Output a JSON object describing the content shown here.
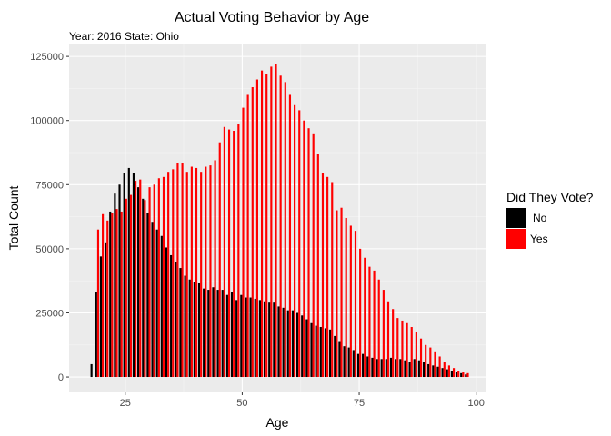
{
  "chart_data": {
    "type": "bar",
    "title": "Actual Voting Behavior by Age",
    "subtitle": "Year: 2016 State: Ohio",
    "xlabel": "Age",
    "ylabel": "Total Count",
    "xlim": [
      13,
      102
    ],
    "ylim": [
      -6000,
      130000
    ],
    "xticks": [
      25,
      50,
      75,
      100
    ],
    "yticks": [
      0,
      25000,
      50000,
      75000,
      100000,
      125000
    ],
    "xtick_labels": [
      "25",
      "50",
      "75",
      "100"
    ],
    "ytick_labels": [
      "0",
      "25000",
      "50000",
      "75000",
      "100000",
      "125000"
    ],
    "grid": true,
    "legend": {
      "title": "Did They Vote?",
      "position": "right",
      "entries": [
        {
          "label": "No",
          "color": "#000000"
        },
        {
          "label": "Yes",
          "color": "#ff0000"
        }
      ]
    },
    "ages": [
      18,
      19,
      20,
      21,
      22,
      23,
      24,
      25,
      26,
      27,
      28,
      29,
      30,
      31,
      32,
      33,
      34,
      35,
      36,
      37,
      38,
      39,
      40,
      41,
      42,
      43,
      44,
      45,
      46,
      47,
      48,
      49,
      50,
      51,
      52,
      53,
      54,
      55,
      56,
      57,
      58,
      59,
      60,
      61,
      62,
      63,
      64,
      65,
      66,
      67,
      68,
      69,
      70,
      71,
      72,
      73,
      74,
      75,
      76,
      77,
      78,
      79,
      80,
      81,
      82,
      83,
      84,
      85,
      86,
      87,
      88,
      89,
      90,
      91,
      92,
      93,
      94,
      95,
      96,
      97,
      98
    ],
    "series": [
      {
        "name": "No",
        "color": "#000000",
        "values": [
          5000,
          33000,
          47000,
          52500,
          64500,
          71500,
          75000,
          79500,
          81500,
          79500,
          74000,
          69500,
          64000,
          60500,
          57500,
          55000,
          50500,
          47500,
          45000,
          42500,
          39500,
          38000,
          37000,
          36500,
          34500,
          34000,
          35000,
          34000,
          34000,
          32000,
          33000,
          30000,
          32000,
          31000,
          31000,
          30500,
          30000,
          29500,
          29000,
          29000,
          27500,
          27000,
          26000,
          26000,
          25000,
          24000,
          22500,
          21000,
          20000,
          19500,
          19000,
          18500,
          16000,
          14000,
          12000,
          11500,
          10500,
          9000,
          9000,
          8000,
          7500,
          7000,
          7000,
          7000,
          7500,
          7000,
          7000,
          6500,
          6000,
          7000,
          6500,
          6000,
          5000,
          4500,
          4000,
          3500,
          3000,
          2500,
          2000,
          1500,
          1000
        ]
      },
      {
        "name": "Yes",
        "color": "#ff0000",
        "values": [
          0,
          57500,
          63500,
          61000,
          64000,
          65500,
          64500,
          69500,
          71000,
          76500,
          77000,
          69000,
          74000,
          75000,
          77500,
          78000,
          80000,
          81000,
          83500,
          83500,
          80000,
          82000,
          81500,
          80000,
          82000,
          82500,
          84500,
          91500,
          97500,
          96500,
          96000,
          98500,
          105000,
          110000,
          113000,
          116000,
          119500,
          118000,
          121000,
          122000,
          117500,
          115000,
          110000,
          106000,
          104000,
          100000,
          97000,
          95000,
          87000,
          79500,
          78000,
          76000,
          65000,
          66000,
          62000,
          59000,
          57000,
          50000,
          46500,
          43000,
          41500,
          38000,
          34000,
          29500,
          26500,
          23000,
          22000,
          21000,
          19500,
          17500,
          15000,
          12500,
          11500,
          10000,
          8000,
          6000,
          4500,
          3500,
          2500,
          2000,
          1500
        ]
      }
    ]
  }
}
